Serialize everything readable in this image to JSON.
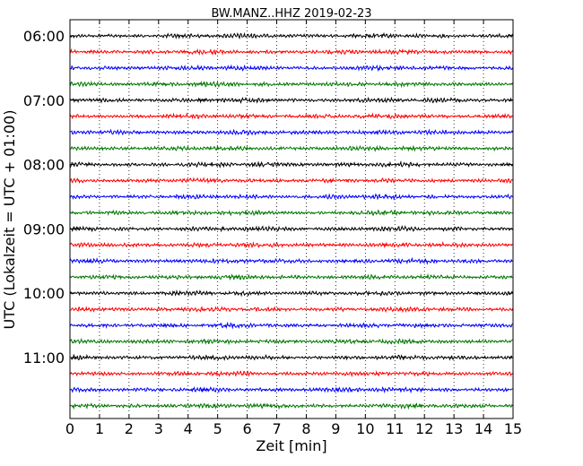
{
  "chart_data": {
    "type": "line",
    "title": "BW.MANZ..HHZ 2019-02-23",
    "xlabel": "Zeit  [min]",
    "ylabel": "UTC (Lokalzeit = UTC + 01:00)",
    "xlim": [
      0,
      15
    ],
    "x_ticks": [
      0,
      1,
      2,
      3,
      4,
      5,
      6,
      7,
      8,
      9,
      10,
      11,
      12,
      13,
      14,
      15
    ],
    "x_tick_labels": [
      "0",
      "1",
      "2",
      "3",
      "4",
      "5",
      "6",
      "7",
      "8",
      "9",
      "10",
      "11",
      "12",
      "13",
      "14",
      "15"
    ],
    "y_tick_labels": [
      "06:00",
      "07:00",
      "08:00",
      "09:00",
      "10:00",
      "11:00"
    ],
    "trace_interval_minutes": 15,
    "trace_count": 24,
    "trace_colors": [
      "#000000",
      "#ff0000",
      "#0000ff",
      "#007700"
    ],
    "grid": "vertical-dotted",
    "legend": "none"
  }
}
